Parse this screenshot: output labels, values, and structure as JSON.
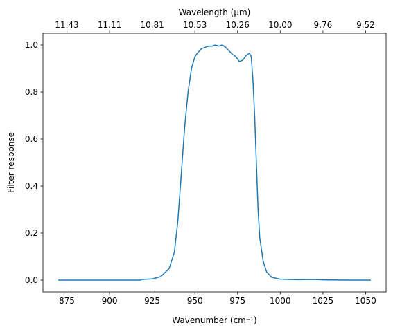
{
  "chart_data": {
    "type": "line",
    "xlabel": "Wavenumber (cm⁻¹)",
    "ylabel": "Filter response",
    "x2label": "Wavelength (μm)",
    "x": [
      870,
      918,
      919,
      925,
      930,
      935,
      938,
      940,
      942,
      944,
      946,
      948,
      950,
      952,
      954,
      956,
      958,
      960,
      962,
      964,
      966,
      968,
      970,
      972,
      974,
      976,
      978,
      980,
      982,
      983,
      984,
      985,
      986,
      987,
      988,
      990,
      992,
      995,
      1000,
      1010,
      1020,
      1025,
      1040,
      1053
    ],
    "series": [
      {
        "name": "Filter response",
        "color": "#1f77b4",
        "values": [
          0,
          0,
          0.003,
          0.005,
          0.015,
          0.05,
          0.12,
          0.25,
          0.45,
          0.65,
          0.8,
          0.9,
          0.95,
          0.97,
          0.985,
          0.99,
          0.995,
          0.995,
          1.0,
          0.995,
          1.0,
          0.99,
          0.975,
          0.96,
          0.95,
          0.93,
          0.935,
          0.955,
          0.965,
          0.95,
          0.85,
          0.7,
          0.5,
          0.3,
          0.18,
          0.08,
          0.035,
          0.012,
          0.004,
          0.002,
          0.003,
          0.001,
          0,
          0
        ]
      }
    ],
    "xlim": [
      861,
      1062
    ],
    "xticks": [
      875,
      900,
      925,
      950,
      975,
      1000,
      1025,
      1050
    ],
    "x2ticks": [
      {
        "value": 875,
        "label": "11.43"
      },
      {
        "value": 900,
        "label": "11.11"
      },
      {
        "value": 925,
        "label": "10.81"
      },
      {
        "value": 950,
        "label": "10.53"
      },
      {
        "value": 975,
        "label": "10.26"
      },
      {
        "value": 1000,
        "label": "10.00"
      },
      {
        "value": 1025,
        "label": "9.76"
      },
      {
        "value": 1050,
        "label": "9.52"
      }
    ],
    "ylim": [
      -0.05,
      1.05
    ],
    "yticks": [
      {
        "value": 0,
        "label": "0.0"
      },
      0.2,
      0.4,
      0.6,
      0.8,
      {
        "value": 1,
        "label": "1.0"
      }
    ],
    "grid": false
  }
}
